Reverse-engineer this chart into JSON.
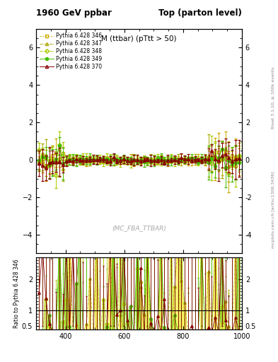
{
  "title_left": "1960 GeV ppbar",
  "title_right": "Top (parton level)",
  "subtitle": "M (ttbar) (pTtt > 50)",
  "watermark": "(MC_FBA_TTBAR)",
  "right_label": "Rivet 3.1.10, ≥ 100k events",
  "arxiv_label": "mcplots.cern.ch [arXiv:1306.3436]",
  "ylabel_ratio": "Ratio to Pythia 6.428 346",
  "xlim": [
    300,
    1000
  ],
  "ylim_main": [
    -5,
    7
  ],
  "ylim_ratio": [
    0.4,
    2.7
  ],
  "yticks_main": [
    -4,
    -2,
    0,
    2,
    4,
    6
  ],
  "yticks_ratio": [
    0.5,
    1.0,
    2.0
  ],
  "xticks": [
    400,
    600,
    800,
    1000
  ],
  "colors": [
    "#ccaa00",
    "#aaaa00",
    "#aacc00",
    "#44bb00",
    "#880000"
  ],
  "markers": [
    "s",
    "^",
    "D",
    "o",
    "^"
  ],
  "markerfill": [
    false,
    false,
    false,
    true,
    false
  ],
  "labels": [
    "Pythia 6.428 346",
    "Pythia 6.428 347",
    "Pythia 6.428 348",
    "Pythia 6.428 349",
    "Pythia 6.428 370"
  ],
  "n_bins": 60,
  "x_start": 310,
  "x_end": 990,
  "bg_color": "#ffffff"
}
